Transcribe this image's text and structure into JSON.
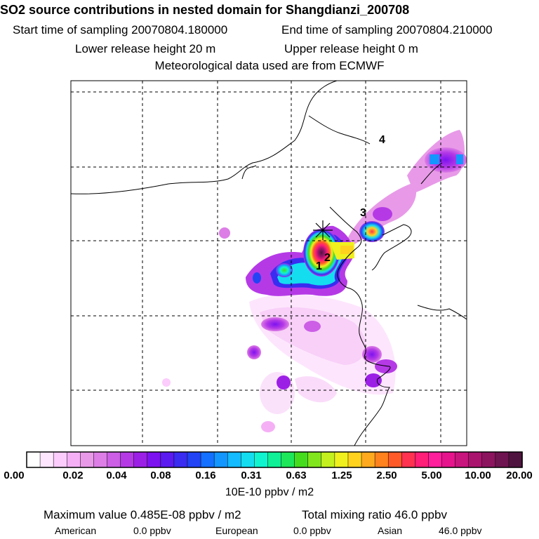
{
  "header": {
    "title": "SO2 source contributions in nested domain for Shangdianzi_200708",
    "start_label": "Start time of sampling 20070804.180000",
    "end_label": "End time of sampling 20070804.210000",
    "lower_label": "Lower release height   20 m",
    "upper_label": "Upper release height    0 m",
    "met_label": "Meteorological data used are from ECMWF"
  },
  "map": {
    "markers": [
      "1",
      "2",
      "3",
      "4"
    ]
  },
  "colorbar": {
    "ticks": [
      "0.00",
      "0.02",
      "0.04",
      "0.08",
      "0.16",
      "0.31",
      "0.63",
      "1.25",
      "2.50",
      "5.00",
      "10.00",
      "20.00"
    ],
    "unit": "10E-10 ppbv / m2",
    "colors": [
      "#ffffff",
      "#ffe6ff",
      "#fcccfc",
      "#f5b0f5",
      "#e89ae8",
      "#dc7ee6",
      "#cc5fe6",
      "#b53ae6",
      "#9c1fe6",
      "#7d12f0",
      "#5a1af0",
      "#3a2cf0",
      "#2244f5",
      "#1470ff",
      "#1496ff",
      "#14bbff",
      "#14ddf0",
      "#10f5d0",
      "#10f096",
      "#1ee65a",
      "#46dc1e",
      "#82e61e",
      "#c3f01e",
      "#f0f01e",
      "#ffd21e",
      "#ffaa1e",
      "#ff821e",
      "#ff5a28",
      "#ff3250",
      "#ff1e78",
      "#ff1e9c",
      "#e6148c",
      "#c8147d",
      "#aa146e",
      "#8c145f",
      "#6e1450",
      "#501440"
    ]
  },
  "footer": {
    "max_label": "Maximum value  0.485E-08 ppbv / m2",
    "total_label": "Total mixing ratio      46.0 ppbv",
    "american_label": "American",
    "american_value": "0.0 ppbv",
    "european_label": "European",
    "european_value": "0.0 ppbv",
    "asian_label": "Asian",
    "asian_value": "46.0 ppbv"
  }
}
